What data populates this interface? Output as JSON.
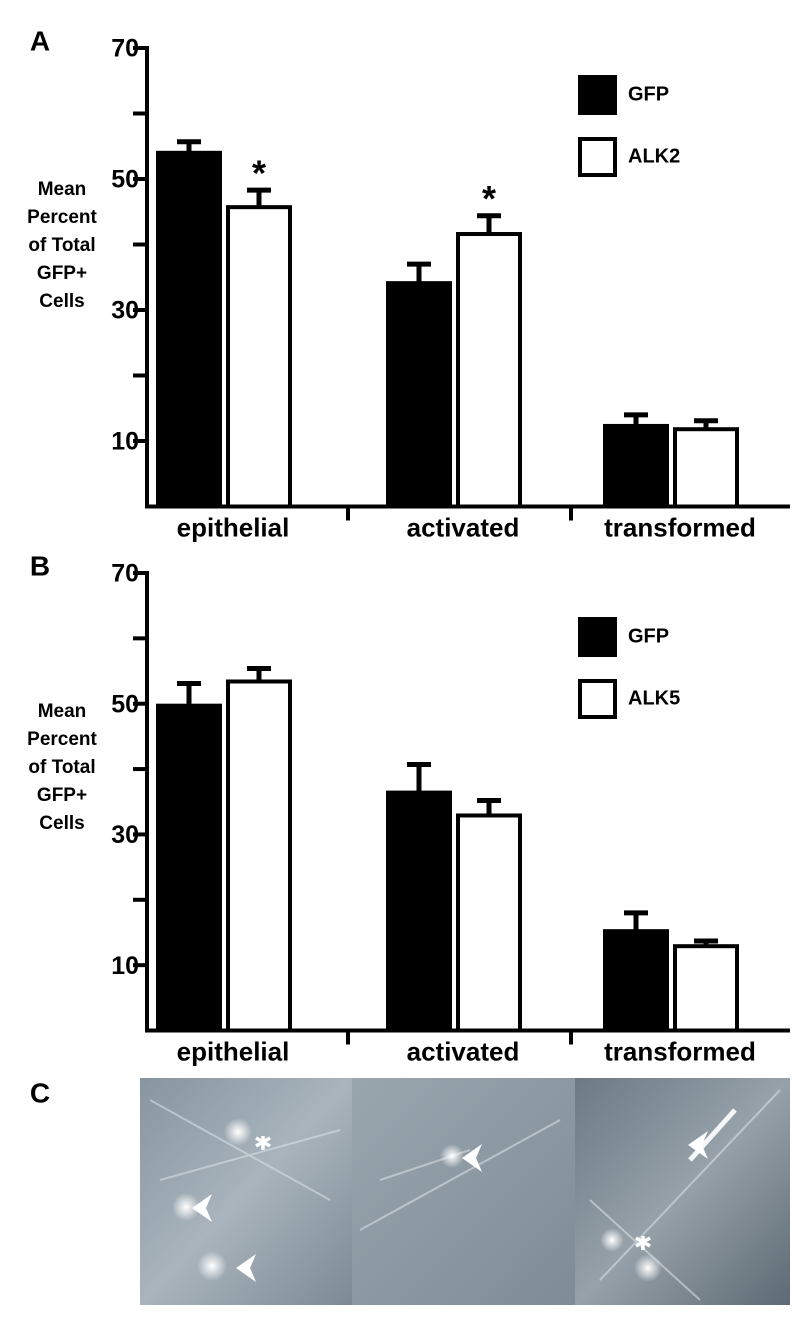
{
  "chart_data": [
    {
      "type": "bar",
      "panel": "A",
      "ylabel": [
        "Mean",
        "Percent",
        "of Total",
        "GFP+",
        "Cells"
      ],
      "categories": [
        "epithelial",
        "activated",
        "transformed"
      ],
      "series": [
        {
          "name": "GFP",
          "color": "#000000",
          "values": [
            54.0,
            34.1,
            12.3
          ],
          "errors": [
            2.0,
            3.2,
            2.0
          ]
        },
        {
          "name": "ALK2",
          "color": "#ffffff",
          "values": [
            45.7,
            41.6,
            11.8
          ],
          "errors": [
            2.9,
            3.1,
            1.6
          ]
        }
      ],
      "annotations": [
        {
          "text": "*",
          "category": "epithelial",
          "series": "ALK2"
        },
        {
          "text": "*",
          "category": "activated",
          "series": "ALK2"
        }
      ],
      "ylim": [
        0,
        70
      ],
      "yticks": [
        10,
        30,
        50,
        70
      ],
      "minor_yticks": [
        20,
        40,
        60
      ],
      "legend": "upper right"
    },
    {
      "type": "bar",
      "panel": "B",
      "ylabel": [
        "Mean",
        "Percent",
        "of Total",
        "GFP+",
        "Cells"
      ],
      "categories": [
        "epithelial",
        "activated",
        "transformed"
      ],
      "series": [
        {
          "name": "GFP",
          "color": "#000000",
          "values": [
            49.7,
            36.4,
            15.2
          ],
          "errors": [
            3.7,
            4.6,
            3.1
          ]
        },
        {
          "name": "ALK5",
          "color": "#ffffff",
          "values": [
            53.4,
            32.9,
            12.9
          ],
          "errors": [
            2.3,
            2.6,
            1.1
          ]
        }
      ],
      "annotations": [],
      "ylim": [
        0,
        70
      ],
      "yticks": [
        10,
        30,
        50,
        70
      ],
      "minor_yticks": [
        20,
        40,
        60
      ],
      "legend": "upper right"
    }
  ],
  "image_panel": {
    "label": "C"
  }
}
